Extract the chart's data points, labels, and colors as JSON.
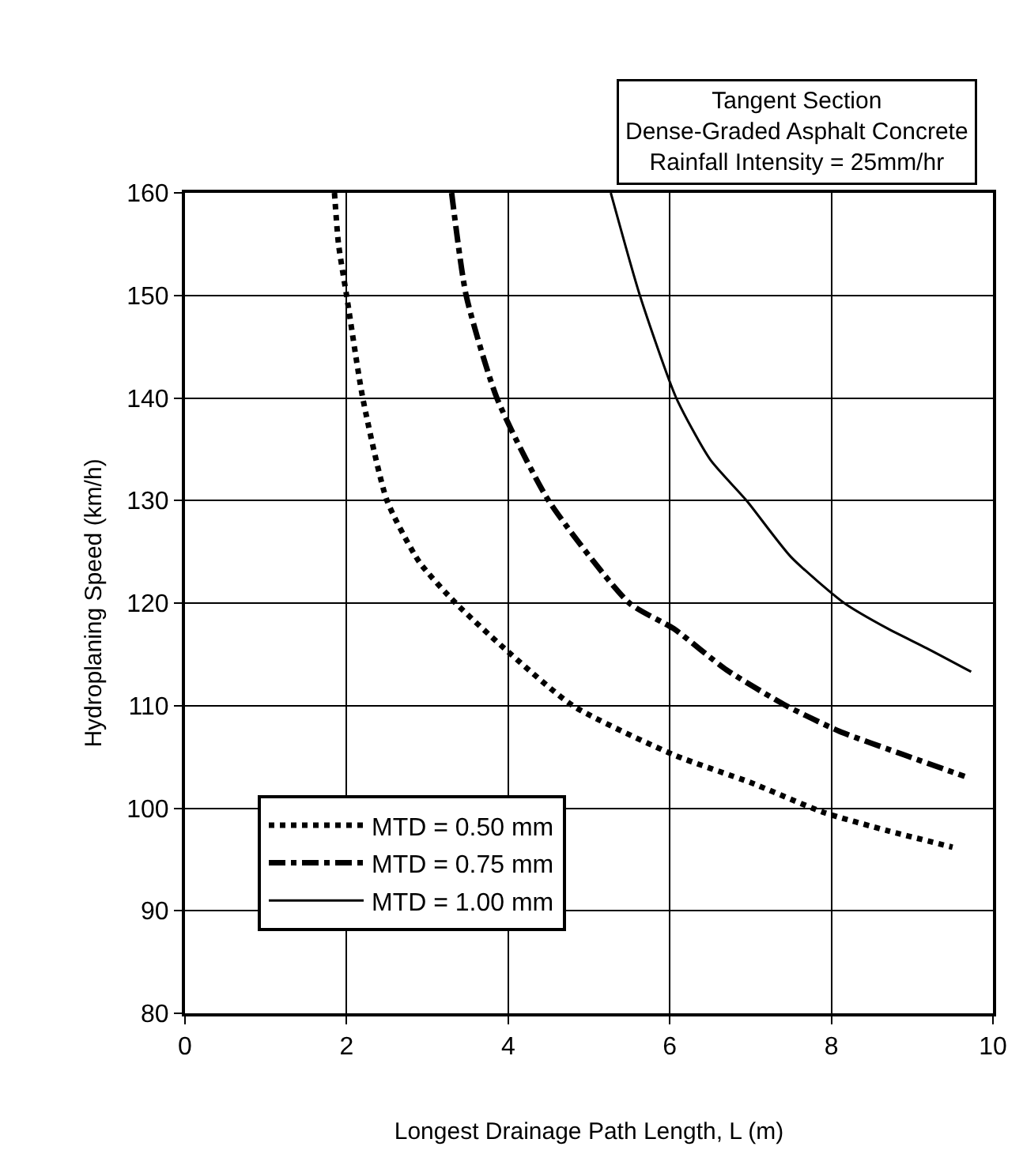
{
  "chart_data": {
    "type": "line",
    "title": "Tangent Section\nDense-Graded Asphalt Concrete\nRainfall Intensity = 25mm/hr",
    "xlabel": "Longest Drainage Path Length, L (m)",
    "ylabel": "Hydroplaning Speed (km/h)",
    "series": [
      {
        "name": "MTD = 0.50 mm",
        "color": "#000000",
        "line_style": "dotted",
        "x": [
          1.85,
          1.9,
          2.0,
          2.2,
          2.5,
          2.9,
          3.35,
          3.95,
          4.8,
          6.05,
          7.0,
          7.9,
          8.7,
          9.5
        ],
        "values": [
          160,
          155,
          150,
          140,
          130,
          124,
          120,
          115.6,
          110,
          105.2,
          102.5,
          99.6,
          97.8,
          96.2
        ]
      },
      {
        "name": "MTD = 0.75 mm",
        "color": "#000000",
        "line_style": "dashdot",
        "x": [
          3.3,
          3.48,
          3.86,
          4.5,
          5.5,
          6.05,
          6.7,
          7.44,
          8.1,
          8.9,
          9.65
        ],
        "values": [
          160,
          150,
          140,
          130,
          120,
          117.5,
          113.5,
          110,
          107.5,
          105.2,
          103.1
        ]
      },
      {
        "name": "MTD = 1.00 mm",
        "color": "#000000",
        "line_style": "solid",
        "x": [
          5.27,
          5.63,
          6.08,
          6.5,
          6.95,
          7.5,
          8.16,
          8.7,
          9.18,
          9.73
        ],
        "values": [
          160,
          150,
          140,
          134,
          130,
          124.5,
          120,
          117.5,
          115.6,
          113.3
        ]
      }
    ],
    "xlim": [
      0,
      10
    ],
    "xticks": [
      0,
      2,
      4,
      6,
      8,
      10
    ],
    "ylim": [
      80,
      160
    ],
    "yticks": [
      80,
      90,
      100,
      110,
      120,
      130,
      140,
      150,
      160
    ],
    "grid": true,
    "legend": "bottom left"
  }
}
